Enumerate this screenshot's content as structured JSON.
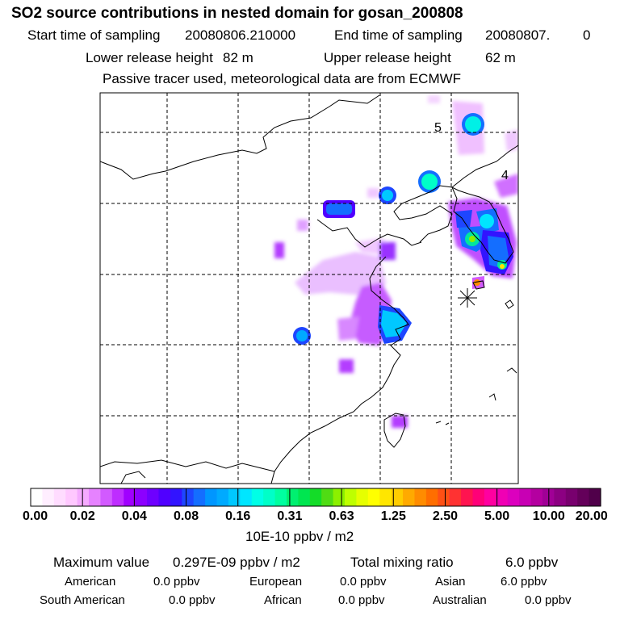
{
  "title": "SO2 source contributions in nested domain for gosan_200808",
  "sampling": {
    "start_label": "Start time of sampling",
    "start_value": "20080806.210000",
    "end_label": "End time of sampling",
    "end_value": "20080807.",
    "end_suffix": "0"
  },
  "release": {
    "lower_label": "Lower release height",
    "lower_value": "82 m",
    "upper_label": "Upper release height",
    "upper_value": "62 m"
  },
  "tracer_note": "Passive tracer used, meteorological data are from ECMWF",
  "map": {
    "region": "East Asia (nested domain)",
    "receptor_station": "gosan",
    "receptor_marker_icon": "asterisk-icon",
    "contour_labels": [
      "5",
      "4"
    ],
    "background_color": "#ffffff",
    "coastline_color": "#000000",
    "grid_style": "dashed"
  },
  "colorbar": {
    "unit_label": "10E-10 ppbv / m2",
    "tick_labels": [
      "0.00",
      "0.02",
      "0.04",
      "0.08",
      "0.16",
      "0.31",
      "0.63",
      "1.25",
      "2.50",
      "5.00",
      "10.00",
      "20.00"
    ],
    "colors": [
      "#ffffff",
      "#ffeeff",
      "#ffdcff",
      "#ffc8ff",
      "#f5aaff",
      "#e682ff",
      "#d25aff",
      "#be2dff",
      "#a000ff",
      "#8c00ff",
      "#6e00ff",
      "#5000ff",
      "#3214ff",
      "#1e46ff",
      "#146eff",
      "#0096ff",
      "#00aaff",
      "#00c8ff",
      "#00e6ff",
      "#00ffe6",
      "#00ffc8",
      "#00ffa0",
      "#00f070",
      "#00e650",
      "#14dc28",
      "#50dc14",
      "#8cf000",
      "#beff00",
      "#e6ff00",
      "#ffff00",
      "#ffe600",
      "#ffcc00",
      "#ffaa00",
      "#ff8c00",
      "#ff6e00",
      "#ff5014",
      "#ff3232",
      "#ff1450",
      "#ff0078",
      "#ff00a0",
      "#f000b4",
      "#dc00be",
      "#c800b4",
      "#b400a0",
      "#a00096",
      "#8c0082",
      "#78006e",
      "#64005a",
      "#50004a"
    ]
  },
  "summary": {
    "max_label": "Maximum value",
    "max_value": "0.297E-09 ppbv / m2",
    "total_label": "Total mixing ratio",
    "total_value": "6.0 ppbv",
    "regions": [
      {
        "name": "American",
        "value": "0.0 ppbv"
      },
      {
        "name": "European",
        "value": "0.0 ppbv"
      },
      {
        "name": "Asian",
        "value": "6.0 ppbv"
      },
      {
        "name": "South American",
        "value": "0.0 ppbv"
      },
      {
        "name": "African",
        "value": "0.0 ppbv"
      },
      {
        "name": "Australian",
        "value": "0.0 ppbv"
      }
    ]
  }
}
